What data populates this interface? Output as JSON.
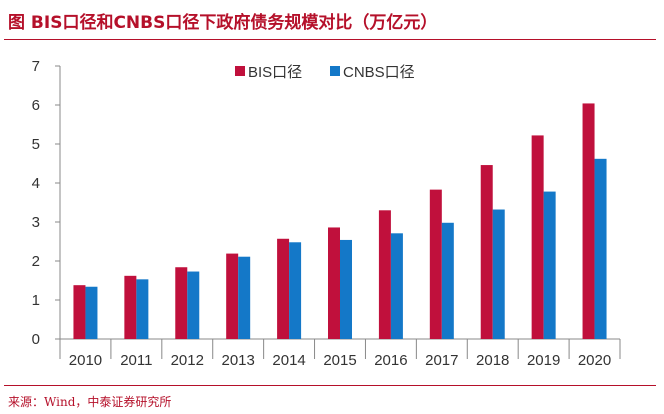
{
  "title": "图 BIS口径和CNBS口径下政府债务规模对比（万亿元）",
  "source": "来源：Wind，中泰证券研究所",
  "colors": {
    "bis": "#c0103c",
    "cnbs": "#1478c8",
    "accent": "#b5102a",
    "axis": "#888888"
  },
  "chart_data": {
    "type": "bar",
    "title": "图 BIS口径和CNBS口径下政府债务规模对比（万亿元）",
    "categories": [
      "2010",
      "2011",
      "2012",
      "2013",
      "2014",
      "2015",
      "2016",
      "2017",
      "2018",
      "2019",
      "2020"
    ],
    "series": [
      {
        "name": "BIS口径",
        "values": [
          1.38,
          1.62,
          1.84,
          2.19,
          2.57,
          2.86,
          3.3,
          3.83,
          4.46,
          5.22,
          6.04
        ]
      },
      {
        "name": "CNBS口径",
        "values": [
          1.34,
          1.53,
          1.73,
          2.11,
          2.48,
          2.54,
          2.71,
          2.98,
          3.32,
          3.78,
          4.62
        ]
      }
    ],
    "yticks": [
      "0",
      "1",
      "2",
      "3",
      "4",
      "5",
      "6",
      "7"
    ],
    "ylim": [
      0,
      7
    ],
    "legend_position": "top",
    "grid": false
  }
}
